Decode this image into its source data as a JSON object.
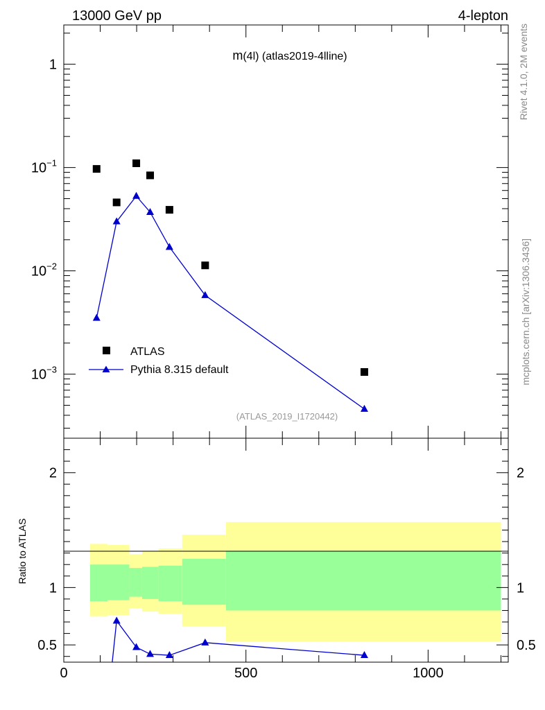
{
  "header": {
    "left": "13000 GeV pp",
    "right": "4-lepton"
  },
  "plot_title": "m(4l) (atlas2019-4lline)",
  "watermark": "(ATLAS_2019_I1720442)",
  "side_text": {
    "top": "Rivet 4.1.0,  2M events",
    "bottom": "mcplots.cern.ch [arXiv:1306.3436]"
  },
  "ratio_ylabel": "Ratio to ATLAS",
  "colors": {
    "data": "#000000",
    "mc": "#0000cc",
    "band_inner": "#99ff99",
    "band_outer": "#ffff99"
  },
  "chart_data": [
    {
      "type": "scatter",
      "name": "main",
      "yscale": "log",
      "xlim": [
        0,
        1220
      ],
      "ylim": [
        0.00024,
        2.4
      ],
      "yticks": [
        {
          "value": 1,
          "mant": "1",
          "exp": ""
        },
        {
          "value": 0.1,
          "mant": "10",
          "exp": "−1"
        },
        {
          "value": 0.01,
          "mant": "10",
          "exp": "−2"
        },
        {
          "value": 0.001,
          "mant": "10",
          "exp": "−3"
        }
      ],
      "legend": [
        {
          "label": "ATLAS",
          "marker": "square"
        },
        {
          "label": "Pythia 8.315 default",
          "marker": "triangle-line"
        }
      ],
      "series": [
        {
          "name": "ATLAS",
          "x": [
            90,
            145,
            199,
            237,
            290,
            388,
            825
          ],
          "y": [
            0.097,
            0.046,
            0.11,
            0.084,
            0.039,
            0.0113,
            0.00105
          ]
        },
        {
          "name": "Pythia 8.315 default",
          "x": [
            90,
            145,
            199,
            237,
            290,
            388,
            825
          ],
          "y": [
            0.0035,
            0.03,
            0.053,
            0.037,
            0.017,
            0.0058,
            0.00046
          ]
        }
      ]
    },
    {
      "type": "line",
      "name": "ratio",
      "xlim": [
        0,
        1220
      ],
      "ylim": [
        0.35,
        2.3
      ],
      "xticks": [
        {
          "value": 0,
          "label": "0"
        },
        {
          "value": 500,
          "label": "500"
        },
        {
          "value": 1000,
          "label": "1000"
        }
      ],
      "yticks": [
        {
          "value": 0.5,
          "label": "0.5"
        },
        {
          "value": 1,
          "label": "1"
        },
        {
          "value": 2,
          "label": "2"
        }
      ],
      "bands": [
        {
          "x0": 72,
          "x1": 120,
          "inner": [
            0.88,
            1.2
          ],
          "outer": [
            0.75,
            1.38
          ]
        },
        {
          "x0": 120,
          "x1": 180,
          "inner": [
            0.89,
            1.2
          ],
          "outer": [
            0.76,
            1.37
          ]
        },
        {
          "x0": 180,
          "x1": 215,
          "inner": [
            0.92,
            1.17
          ],
          "outer": [
            0.82,
            1.29
          ]
        },
        {
          "x0": 215,
          "x1": 260,
          "inner": [
            0.9,
            1.18
          ],
          "outer": [
            0.79,
            1.32
          ]
        },
        {
          "x0": 260,
          "x1": 325,
          "inner": [
            0.88,
            1.19
          ],
          "outer": [
            0.77,
            1.34
          ]
        },
        {
          "x0": 325,
          "x1": 445,
          "inner": [
            0.85,
            1.25
          ],
          "outer": [
            0.66,
            1.46
          ]
        },
        {
          "x0": 445,
          "x1": 1200,
          "inner": [
            0.8,
            1.32
          ],
          "outer": [
            0.53,
            1.57
          ]
        }
      ],
      "series": [
        {
          "name": "Pythia 8.315 default",
          "x": [
            145,
            199,
            237,
            290,
            388,
            825
          ],
          "y": [
            0.71,
            0.48,
            0.42,
            0.41,
            0.52,
            0.41
          ],
          "offscale_start": {
            "x": 133,
            "y": 0.35
          }
        }
      ]
    }
  ]
}
